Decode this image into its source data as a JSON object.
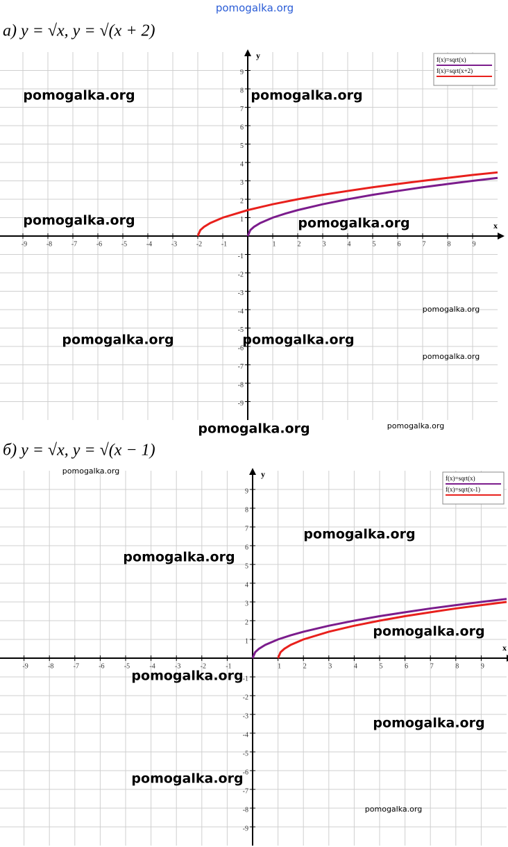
{
  "chart_data": [
    {
      "type": "line",
      "title": "а) y = √x,      y = √(x + 2)",
      "xlabel": "x",
      "ylabel": "y",
      "xlim": [
        -10,
        10
      ],
      "ylim": [
        -10,
        10
      ],
      "xticks": [
        -9,
        -8,
        -7,
        -6,
        -5,
        -4,
        -3,
        -2,
        -1,
        1,
        2,
        3,
        4,
        5,
        6,
        7,
        8,
        9
      ],
      "yticks": [
        -9,
        -8,
        -7,
        -6,
        -5,
        -4,
        -3,
        -2,
        -1,
        1,
        2,
        3,
        4,
        5,
        6,
        7,
        8,
        9
      ],
      "grid": true,
      "legend": "upper right",
      "series": [
        {
          "name": "f(x)=sqrt(x)",
          "color": "#7b1c8c",
          "x": [
            0,
            0.1,
            0.25,
            0.5,
            1,
            1.5,
            2,
            3,
            4,
            5,
            6,
            7,
            8,
            9,
            10
          ],
          "values": [
            0,
            0.32,
            0.5,
            0.71,
            1,
            1.22,
            1.41,
            1.73,
            2,
            2.24,
            2.45,
            2.65,
            2.83,
            3,
            3.16
          ]
        },
        {
          "name": "f(x)=sqrt(x+2)",
          "color": "#e8201c",
          "x": [
            -2,
            -1.9,
            -1.75,
            -1.5,
            -1,
            0,
            1,
            2,
            3,
            4,
            5,
            6,
            7,
            8,
            9,
            10
          ],
          "values": [
            0,
            0.32,
            0.5,
            0.71,
            1,
            1.41,
            1.73,
            2,
            2.24,
            2.45,
            2.65,
            2.83,
            3,
            3.16,
            3.32,
            3.46
          ]
        }
      ]
    },
    {
      "type": "line",
      "title": "б) y = √x,      y = √(x − 1)",
      "xlabel": "x",
      "ylabel": "y",
      "xlim": [
        -10,
        10
      ],
      "ylim": [
        -10,
        10
      ],
      "xticks": [
        -9,
        -8,
        -7,
        -6,
        -5,
        -4,
        -3,
        -2,
        -1,
        1,
        2,
        3,
        4,
        5,
        6,
        7,
        8,
        9
      ],
      "yticks": [
        -9,
        -8,
        -7,
        -6,
        -5,
        -4,
        -3,
        -2,
        -1,
        1,
        2,
        3,
        4,
        5,
        6,
        7,
        8,
        9
      ],
      "grid": true,
      "legend": "upper right",
      "series": [
        {
          "name": "f(x)=sqrt(x)",
          "color": "#7b1c8c",
          "x": [
            0,
            0.1,
            0.25,
            0.5,
            1,
            1.5,
            2,
            3,
            4,
            5,
            6,
            7,
            8,
            9,
            10
          ],
          "values": [
            0,
            0.32,
            0.5,
            0.71,
            1,
            1.22,
            1.41,
            1.73,
            2,
            2.24,
            2.45,
            2.65,
            2.83,
            3,
            3.16
          ]
        },
        {
          "name": "f(x)=sqrt(x-1)",
          "color": "#e8201c",
          "x": [
            1,
            1.1,
            1.25,
            1.5,
            2,
            3,
            4,
            5,
            6,
            7,
            8,
            9,
            10
          ],
          "values": [
            0,
            0.32,
            0.5,
            0.71,
            1,
            1.41,
            1.73,
            2,
            2.24,
            2.45,
            2.65,
            2.83,
            3
          ]
        }
      ]
    }
  ],
  "watermarks": [
    "pomogalka.org",
    "pomogalka.org",
    "pomogalka.org",
    "pomogalka.org",
    "pomogalka.org",
    "pomogalka.org",
    "pomogalka.org",
    "pomogalka.org",
    "pomogalka.org",
    "pomogalka.org",
    "pomogalka.org",
    "pomogalka.org",
    "pomogalka.org",
    "pomogalka.org",
    "pomogalka.org",
    "pomogalka.org",
    "pomogalka.org",
    "pomogalka.org",
    "pomogalka.org"
  ]
}
